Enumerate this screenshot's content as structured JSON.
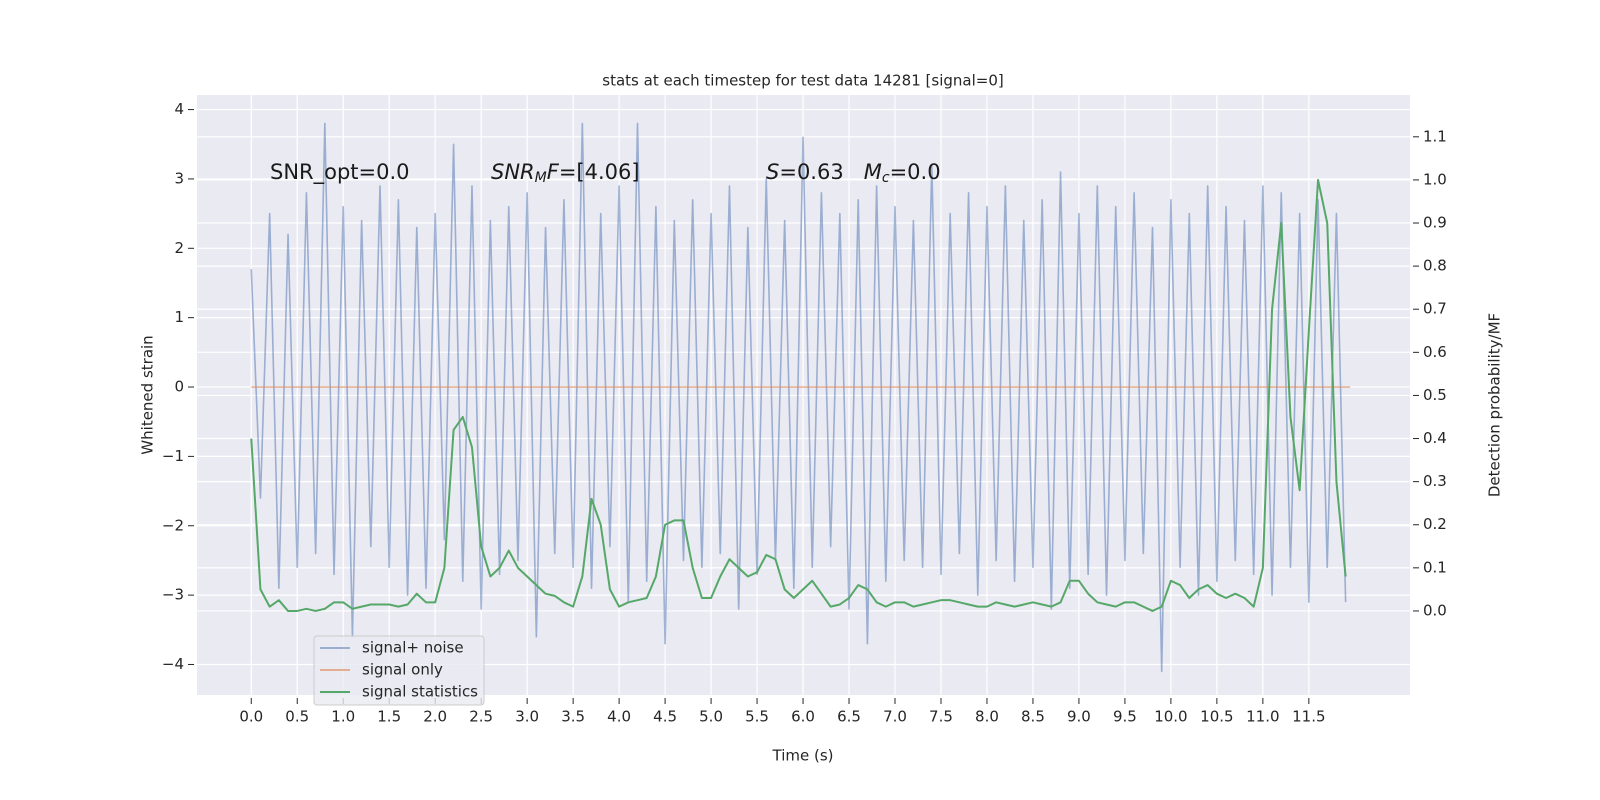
{
  "chart_data": {
    "type": "line",
    "title": "stats at each timestep for test data 14281 [signal=0]",
    "xlabel": "Time (s)",
    "ylabel": "Whitened strain",
    "y2label": "Detection probability/MF",
    "grid": true,
    "legend": "lower left",
    "background": "#eaeaf2",
    "xlim": [
      -0.59,
      12.6
    ],
    "ylim": [
      -4.44,
      4.21
    ],
    "y2lim": [
      -0.195,
      1.197
    ],
    "xticks": [
      {
        "value": 0,
        "label": "0.0"
      },
      {
        "value": 0.5,
        "label": "0.5"
      },
      {
        "value": 1,
        "label": "1.0"
      },
      {
        "value": 1.5,
        "label": "1.5"
      },
      {
        "value": 2,
        "label": "2.0"
      },
      {
        "value": 2.5,
        "label": "2.5"
      },
      {
        "value": 3,
        "label": "3.0"
      },
      {
        "value": 3.5,
        "label": "3.5"
      },
      {
        "value": 4,
        "label": "4.0"
      },
      {
        "value": 4.5,
        "label": "4.5"
      },
      {
        "value": 5,
        "label": "5.0"
      },
      {
        "value": 5.5,
        "label": "5.5"
      },
      {
        "value": 6,
        "label": "6.0"
      },
      {
        "value": 6.5,
        "label": "6.5"
      },
      {
        "value": 7,
        "label": "7.0"
      },
      {
        "value": 7.5,
        "label": "7.5"
      },
      {
        "value": 8,
        "label": "8.0"
      },
      {
        "value": 8.5,
        "label": "8.5"
      },
      {
        "value": 9,
        "label": "9.0"
      },
      {
        "value": 9.5,
        "label": "9.5"
      },
      {
        "value": 10,
        "label": "10.0"
      },
      {
        "value": 10.5,
        "label": "10.5"
      },
      {
        "value": 11,
        "label": "11.0"
      },
      {
        "value": 11.5,
        "label": "11.5"
      }
    ],
    "yticks": [
      {
        "value": -4,
        "label": "−4"
      },
      {
        "value": -3,
        "label": "−3"
      },
      {
        "value": -2,
        "label": "−2"
      },
      {
        "value": -1,
        "label": "−1"
      },
      0,
      1,
      2,
      3,
      4
    ],
    "y2ticks": [
      {
        "value": 0,
        "label": "0.0"
      },
      {
        "value": 0.1,
        "label": "0.1"
      },
      {
        "value": 0.2,
        "label": "0.2"
      },
      {
        "value": 0.3,
        "label": "0.3"
      },
      {
        "value": 0.4,
        "label": "0.4"
      },
      {
        "value": 0.5,
        "label": "0.5"
      },
      {
        "value": 0.6,
        "label": "0.6"
      },
      {
        "value": 0.7,
        "label": "0.7"
      },
      {
        "value": 0.8,
        "label": "0.8"
      },
      {
        "value": 0.9,
        "label": "0.9"
      },
      {
        "value": 1.0,
        "label": "1.0"
      },
      {
        "value": 1.1,
        "label": "1.1"
      }
    ],
    "x": [
      0,
      0.1,
      0.2,
      0.3,
      0.4,
      0.5,
      0.6,
      0.7,
      0.8,
      0.9,
      1.0,
      1.1,
      1.2,
      1.3,
      1.4,
      1.5,
      1.6,
      1.7,
      1.8,
      1.9,
      2.0,
      2.1,
      2.2,
      2.3,
      2.4,
      2.5,
      2.6,
      2.7,
      2.8,
      2.9,
      3.0,
      3.1,
      3.2,
      3.3,
      3.4,
      3.5,
      3.6,
      3.7,
      3.8,
      3.9,
      4.0,
      4.1,
      4.2,
      4.3,
      4.4,
      4.5,
      4.6,
      4.7,
      4.8,
      4.9,
      5.0,
      5.1,
      5.2,
      5.3,
      5.4,
      5.5,
      5.6,
      5.7,
      5.8,
      5.9,
      6.0,
      6.1,
      6.2,
      6.3,
      6.4,
      6.5,
      6.6,
      6.7,
      6.8,
      6.9,
      7.0,
      7.1,
      7.2,
      7.3,
      7.4,
      7.5,
      7.6,
      7.7,
      7.8,
      7.9,
      8.0,
      8.1,
      8.2,
      8.3,
      8.4,
      8.5,
      8.6,
      8.7,
      8.8,
      8.9,
      9.0,
      9.1,
      9.2,
      9.3,
      9.4,
      9.5,
      9.6,
      9.7,
      9.8,
      9.9,
      10.0,
      10.1,
      10.2,
      10.3,
      10.4,
      10.5,
      10.6,
      10.7,
      10.8,
      10.9,
      11.0,
      11.1,
      11.2,
      11.3,
      11.4,
      11.5,
      11.6,
      11.7,
      11.8,
      11.9
    ],
    "series": [
      {
        "name": "signal+ noise",
        "color": "#4c72b0",
        "alpha": 0.5,
        "axis": "y",
        "values": [
          1.7,
          -1.6,
          2.5,
          -2.9,
          2.2,
          -2.6,
          2.8,
          -2.4,
          3.8,
          -2.7,
          2.6,
          -3.6,
          2.4,
          -2.3,
          2.9,
          -2.6,
          2.7,
          -3.0,
          2.3,
          -2.9,
          2.5,
          -2.2,
          3.5,
          -2.8,
          2.9,
          -3.2,
          2.4,
          -2.7,
          2.6,
          -2.5,
          2.8,
          -3.6,
          2.3,
          -2.4,
          2.7,
          -2.6,
          3.8,
          -2.9,
          2.5,
          -2.3,
          2.9,
          -3.1,
          3.8,
          -2.8,
          2.6,
          -3.7,
          2.4,
          -2.5,
          2.7,
          -2.6,
          2.5,
          -2.4,
          2.9,
          -3.2,
          2.3,
          -2.7,
          3.0,
          -2.5,
          2.4,
          -2.9,
          3.6,
          -2.6,
          2.8,
          -2.3,
          2.5,
          -3.2,
          2.7,
          -3.7,
          2.9,
          -2.8,
          2.6,
          -2.5,
          2.4,
          -2.6,
          3.2,
          -2.7,
          2.5,
          -2.4,
          2.8,
          -3.0,
          2.6,
          -2.5,
          2.9,
          -2.8,
          2.4,
          -2.6,
          2.7,
          -3.2,
          3.1,
          -2.9,
          2.5,
          -2.7,
          2.9,
          -3.0,
          2.6,
          -2.5,
          2.8,
          -2.4,
          2.3,
          -4.1,
          2.7,
          -2.6,
          2.5,
          -3.0,
          2.9,
          -2.8,
          2.6,
          -2.5,
          2.4,
          -2.7,
          2.9,
          -3.0,
          2.8,
          -2.6,
          2.5,
          -3.1,
          2.7,
          -2.6,
          2.5,
          -3.1
        ]
      },
      {
        "name": "signal only",
        "color": "#dd8452",
        "alpha": 0.6,
        "axis": "y",
        "x": [
          0,
          11.95
        ],
        "values": [
          0,
          0
        ]
      },
      {
        "name": "signal statistics",
        "color": "#55a868",
        "alpha": 1,
        "axis": "y2",
        "values": [
          0.4,
          0.05,
          0.01,
          0.025,
          0.0,
          0.0,
          0.005,
          0.0,
          0.005,
          0.02,
          0.02,
          0.005,
          0.01,
          0.015,
          0.015,
          0.015,
          0.01,
          0.015,
          0.04,
          0.02,
          0.02,
          0.1,
          0.42,
          0.45,
          0.38,
          0.15,
          0.08,
          0.1,
          0.14,
          0.1,
          0.08,
          0.06,
          0.04,
          0.035,
          0.02,
          0.01,
          0.08,
          0.26,
          0.2,
          0.05,
          0.01,
          0.02,
          0.025,
          0.03,
          0.08,
          0.2,
          0.21,
          0.21,
          0.1,
          0.03,
          0.03,
          0.08,
          0.12,
          0.1,
          0.08,
          0.09,
          0.13,
          0.12,
          0.05,
          0.03,
          0.05,
          0.07,
          0.04,
          0.01,
          0.015,
          0.03,
          0.06,
          0.05,
          0.02,
          0.01,
          0.02,
          0.02,
          0.01,
          0.015,
          0.02,
          0.025,
          0.025,
          0.02,
          0.015,
          0.01,
          0.01,
          0.02,
          0.015,
          0.01,
          0.015,
          0.02,
          0.015,
          0.01,
          0.02,
          0.07,
          0.07,
          0.04,
          0.02,
          0.015,
          0.01,
          0.02,
          0.02,
          0.01,
          0.0,
          0.01,
          0.07,
          0.06,
          0.03,
          0.05,
          0.06,
          0.04,
          0.03,
          0.04,
          0.03,
          0.01,
          0.1,
          0.7,
          0.9,
          0.45,
          0.28,
          0.65,
          1.0,
          0.9,
          0.3,
          0.08
        ]
      }
    ],
    "annotations": [
      {
        "parts": [
          {
            "text": "SNR_opt=0.0"
          }
        ]
      },
      {
        "parts": [
          {
            "text": "SNR",
            "italic": true
          },
          {
            "text": "M",
            "italic": true,
            "sub": true
          },
          {
            "text": "F",
            "italic": true
          },
          {
            "text": "=[4.06]"
          }
        ]
      },
      {
        "parts": [
          {
            "text": "S",
            "italic": true
          },
          {
            "text": "=0.63   "
          },
          {
            "text": "M",
            "italic": true
          },
          {
            "text": "c",
            "italic": true,
            "sub": true
          },
          {
            "text": "=0.0"
          }
        ]
      }
    ]
  }
}
